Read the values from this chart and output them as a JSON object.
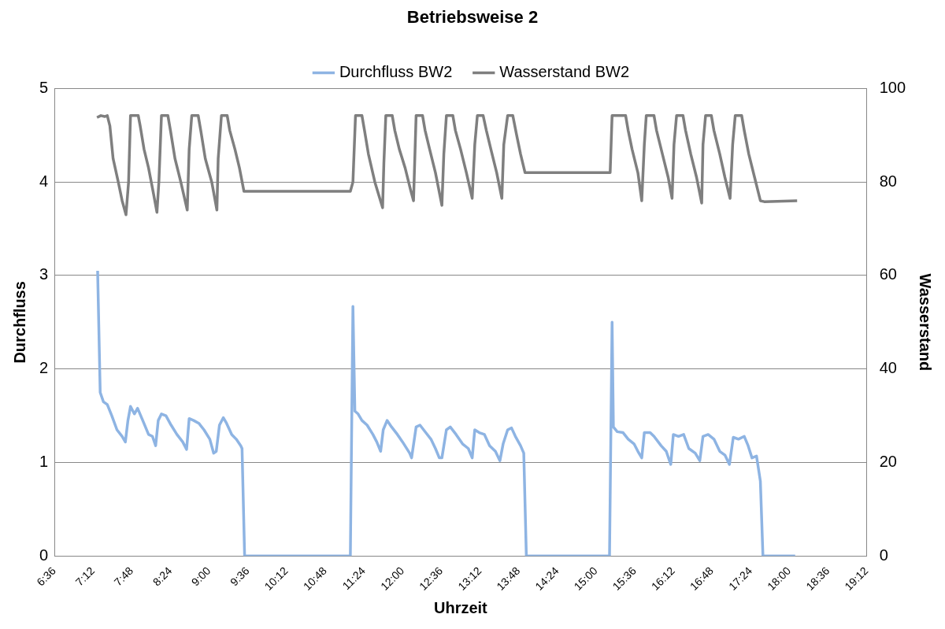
{
  "chart_data": {
    "type": "line",
    "title": "Betriebsweise 2",
    "xlabel": "Uhrzeit",
    "ylabel": "Durchfluss",
    "y2label": "Wasserstand",
    "xlim": [
      6.6,
      19.2
    ],
    "xticks": [
      {
        "value": 6.6,
        "label": "6:36"
      },
      {
        "value": 7.2,
        "label": "7:12"
      },
      {
        "value": 7.8,
        "label": "7:48"
      },
      {
        "value": 8.4,
        "label": "8:24"
      },
      {
        "value": 9.0,
        "label": "9:00"
      },
      {
        "value": 9.6,
        "label": "9:36"
      },
      {
        "value": 10.2,
        "label": "10:12"
      },
      {
        "value": 10.8,
        "label": "10:48"
      },
      {
        "value": 11.4,
        "label": "11:24"
      },
      {
        "value": 12.0,
        "label": "12:00"
      },
      {
        "value": 12.6,
        "label": "12:36"
      },
      {
        "value": 13.2,
        "label": "13:12"
      },
      {
        "value": 13.8,
        "label": "13:48"
      },
      {
        "value": 14.4,
        "label": "14:24"
      },
      {
        "value": 15.0,
        "label": "15:00"
      },
      {
        "value": 15.6,
        "label": "15:36"
      },
      {
        "value": 16.2,
        "label": "16:12"
      },
      {
        "value": 16.8,
        "label": "16:48"
      },
      {
        "value": 17.4,
        "label": "17:24"
      },
      {
        "value": 18.0,
        "label": "18:00"
      },
      {
        "value": 18.6,
        "label": "18:36"
      },
      {
        "value": 19.2,
        "label": "19:12"
      }
    ],
    "ylim": [
      0,
      5
    ],
    "yticks": [
      0,
      1,
      2,
      3,
      4,
      5
    ],
    "y2lim": [
      0,
      100
    ],
    "y2ticks": [
      0,
      20,
      40,
      60,
      80,
      100
    ],
    "grid": "y",
    "legend": "top",
    "marker": "none",
    "line_style": "solid",
    "series": [
      {
        "name": "Durchfluss BW2",
        "color": "#8eb4e3",
        "x": [
          7.27,
          7.31,
          7.36,
          7.42,
          7.49,
          7.57,
          7.65,
          7.7,
          7.74,
          7.78,
          7.84,
          7.89,
          7.97,
          8.06,
          8.12,
          8.17,
          8.21,
          8.26,
          8.33,
          8.41,
          8.5,
          8.59,
          8.65,
          8.69,
          8.76,
          8.84,
          8.92,
          9.01,
          9.07,
          9.11,
          9.16,
          9.22,
          9.27,
          9.35,
          9.42,
          9.49,
          9.51,
          9.55,
          11.19,
          11.23,
          11.26,
          11.31,
          11.37,
          11.45,
          11.54,
          11.6,
          11.66,
          11.7,
          11.76,
          11.83,
          11.92,
          12.0,
          12.11,
          12.14,
          12.21,
          12.27,
          12.36,
          12.44,
          12.51,
          12.57,
          12.61,
          12.68,
          12.74,
          12.83,
          12.93,
          13.02,
          13.08,
          13.12,
          13.19,
          13.27,
          13.35,
          13.44,
          13.51,
          13.56,
          13.63,
          13.69,
          13.75,
          13.83,
          13.88,
          13.92,
          15.21,
          15.25,
          15.27,
          15.33,
          15.42,
          15.5,
          15.59,
          15.65,
          15.71,
          15.75,
          15.84,
          15.9,
          16.01,
          16.09,
          16.16,
          16.2,
          16.28,
          16.36,
          16.44,
          16.54,
          16.61,
          16.66,
          16.74,
          16.83,
          16.92,
          17.0,
          17.07,
          17.13,
          17.21,
          17.3,
          17.36,
          17.42,
          17.49,
          17.55,
          17.59,
          18.09
        ],
        "values": [
          3.05,
          1.75,
          1.65,
          1.62,
          1.5,
          1.35,
          1.28,
          1.22,
          1.45,
          1.6,
          1.52,
          1.58,
          1.45,
          1.3,
          1.28,
          1.18,
          1.45,
          1.52,
          1.5,
          1.4,
          1.3,
          1.22,
          1.14,
          1.47,
          1.45,
          1.42,
          1.35,
          1.25,
          1.1,
          1.12,
          1.4,
          1.48,
          1.42,
          1.3,
          1.25,
          1.18,
          1.15,
          0,
          0,
          2.67,
          1.55,
          1.52,
          1.45,
          1.4,
          1.3,
          1.22,
          1.12,
          1.35,
          1.45,
          1.38,
          1.3,
          1.22,
          1.1,
          1.05,
          1.38,
          1.4,
          1.32,
          1.25,
          1.15,
          1.05,
          1.05,
          1.35,
          1.38,
          1.3,
          1.2,
          1.15,
          1.05,
          1.35,
          1.32,
          1.3,
          1.18,
          1.12,
          1.02,
          1.2,
          1.35,
          1.37,
          1.28,
          1.18,
          1.1,
          0,
          0,
          2.5,
          1.38,
          1.33,
          1.32,
          1.25,
          1.2,
          1.12,
          1.05,
          1.32,
          1.32,
          1.28,
          1.18,
          1.12,
          0.98,
          1.3,
          1.28,
          1.3,
          1.15,
          1.1,
          1.02,
          1.28,
          1.3,
          1.25,
          1.12,
          1.08,
          0.98,
          1.27,
          1.25,
          1.28,
          1.18,
          1.05,
          1.07,
          0.8,
          0,
          0
        ]
      },
      {
        "name": "Wasserstand BW2",
        "color": "#7f7f7f",
        "axis": "y2",
        "x": [
          7.26,
          7.32,
          7.38,
          7.42,
          7.46,
          7.51,
          7.59,
          7.65,
          7.71,
          7.75,
          7.78,
          7.85,
          7.9,
          7.93,
          7.99,
          8.06,
          8.13,
          8.19,
          8.22,
          8.26,
          8.36,
          8.4,
          8.47,
          8.56,
          8.66,
          8.69,
          8.73,
          8.83,
          8.87,
          8.94,
          9.04,
          9.12,
          9.14,
          9.19,
          9.28,
          9.32,
          9.4,
          9.47,
          9.54,
          9.57,
          11.19,
          11.23,
          11.27,
          11.37,
          11.41,
          11.47,
          11.57,
          11.69,
          11.71,
          11.74,
          11.84,
          11.88,
          11.95,
          12.04,
          12.13,
          12.17,
          12.21,
          12.31,
          12.35,
          12.42,
          12.51,
          12.61,
          12.64,
          12.68,
          12.78,
          12.82,
          12.9,
          12.99,
          13.08,
          13.12,
          13.16,
          13.25,
          13.3,
          13.37,
          13.46,
          13.54,
          13.57,
          13.63,
          13.71,
          13.77,
          13.83,
          13.9,
          13.93,
          14.77,
          15.22,
          15.25,
          15.46,
          15.5,
          15.56,
          15.65,
          15.71,
          15.75,
          15.78,
          15.9,
          15.94,
          16.03,
          16.12,
          16.18,
          16.21,
          16.25,
          16.35,
          16.39,
          16.47,
          16.56,
          16.64,
          16.66,
          16.7,
          16.79,
          16.83,
          16.92,
          17.0,
          17.08,
          17.12,
          17.16,
          17.26,
          17.3,
          17.37,
          17.46,
          17.55,
          17.61,
          18.12
        ],
        "values": [
          93.8,
          94.2,
          94,
          94.2,
          92,
          85,
          80,
          76,
          73,
          80,
          94.2,
          94.2,
          94.2,
          92,
          87,
          83,
          78,
          73.5,
          80,
          94.2,
          94.2,
          91,
          85,
          80,
          74,
          87,
          94.2,
          94.2,
          91,
          85,
          80,
          74,
          85,
          94.2,
          94.2,
          91,
          87,
          83,
          78,
          78,
          78,
          80,
          94.2,
          94.2,
          91,
          86,
          80,
          74.5,
          84,
          94.2,
          94.2,
          91,
          87,
          83,
          78,
          76,
          94.2,
          94.2,
          91,
          87,
          82,
          75,
          86,
          94.2,
          94.2,
          91,
          87,
          82,
          76.5,
          88,
          94.2,
          94.2,
          91,
          87,
          82,
          76.5,
          88,
          94.2,
          94.2,
          90,
          86,
          82,
          82,
          82,
          82,
          94.2,
          94.2,
          91,
          87,
          82,
          76,
          88,
          94.2,
          94.2,
          91,
          86,
          81,
          76.5,
          88,
          94.2,
          94.2,
          91,
          86,
          81,
          75.5,
          88,
          94.2,
          94.2,
          91,
          86,
          81,
          76.5,
          88,
          94.2,
          94.2,
          91,
          86,
          81,
          76,
          75.8,
          76
        ]
      }
    ]
  }
}
